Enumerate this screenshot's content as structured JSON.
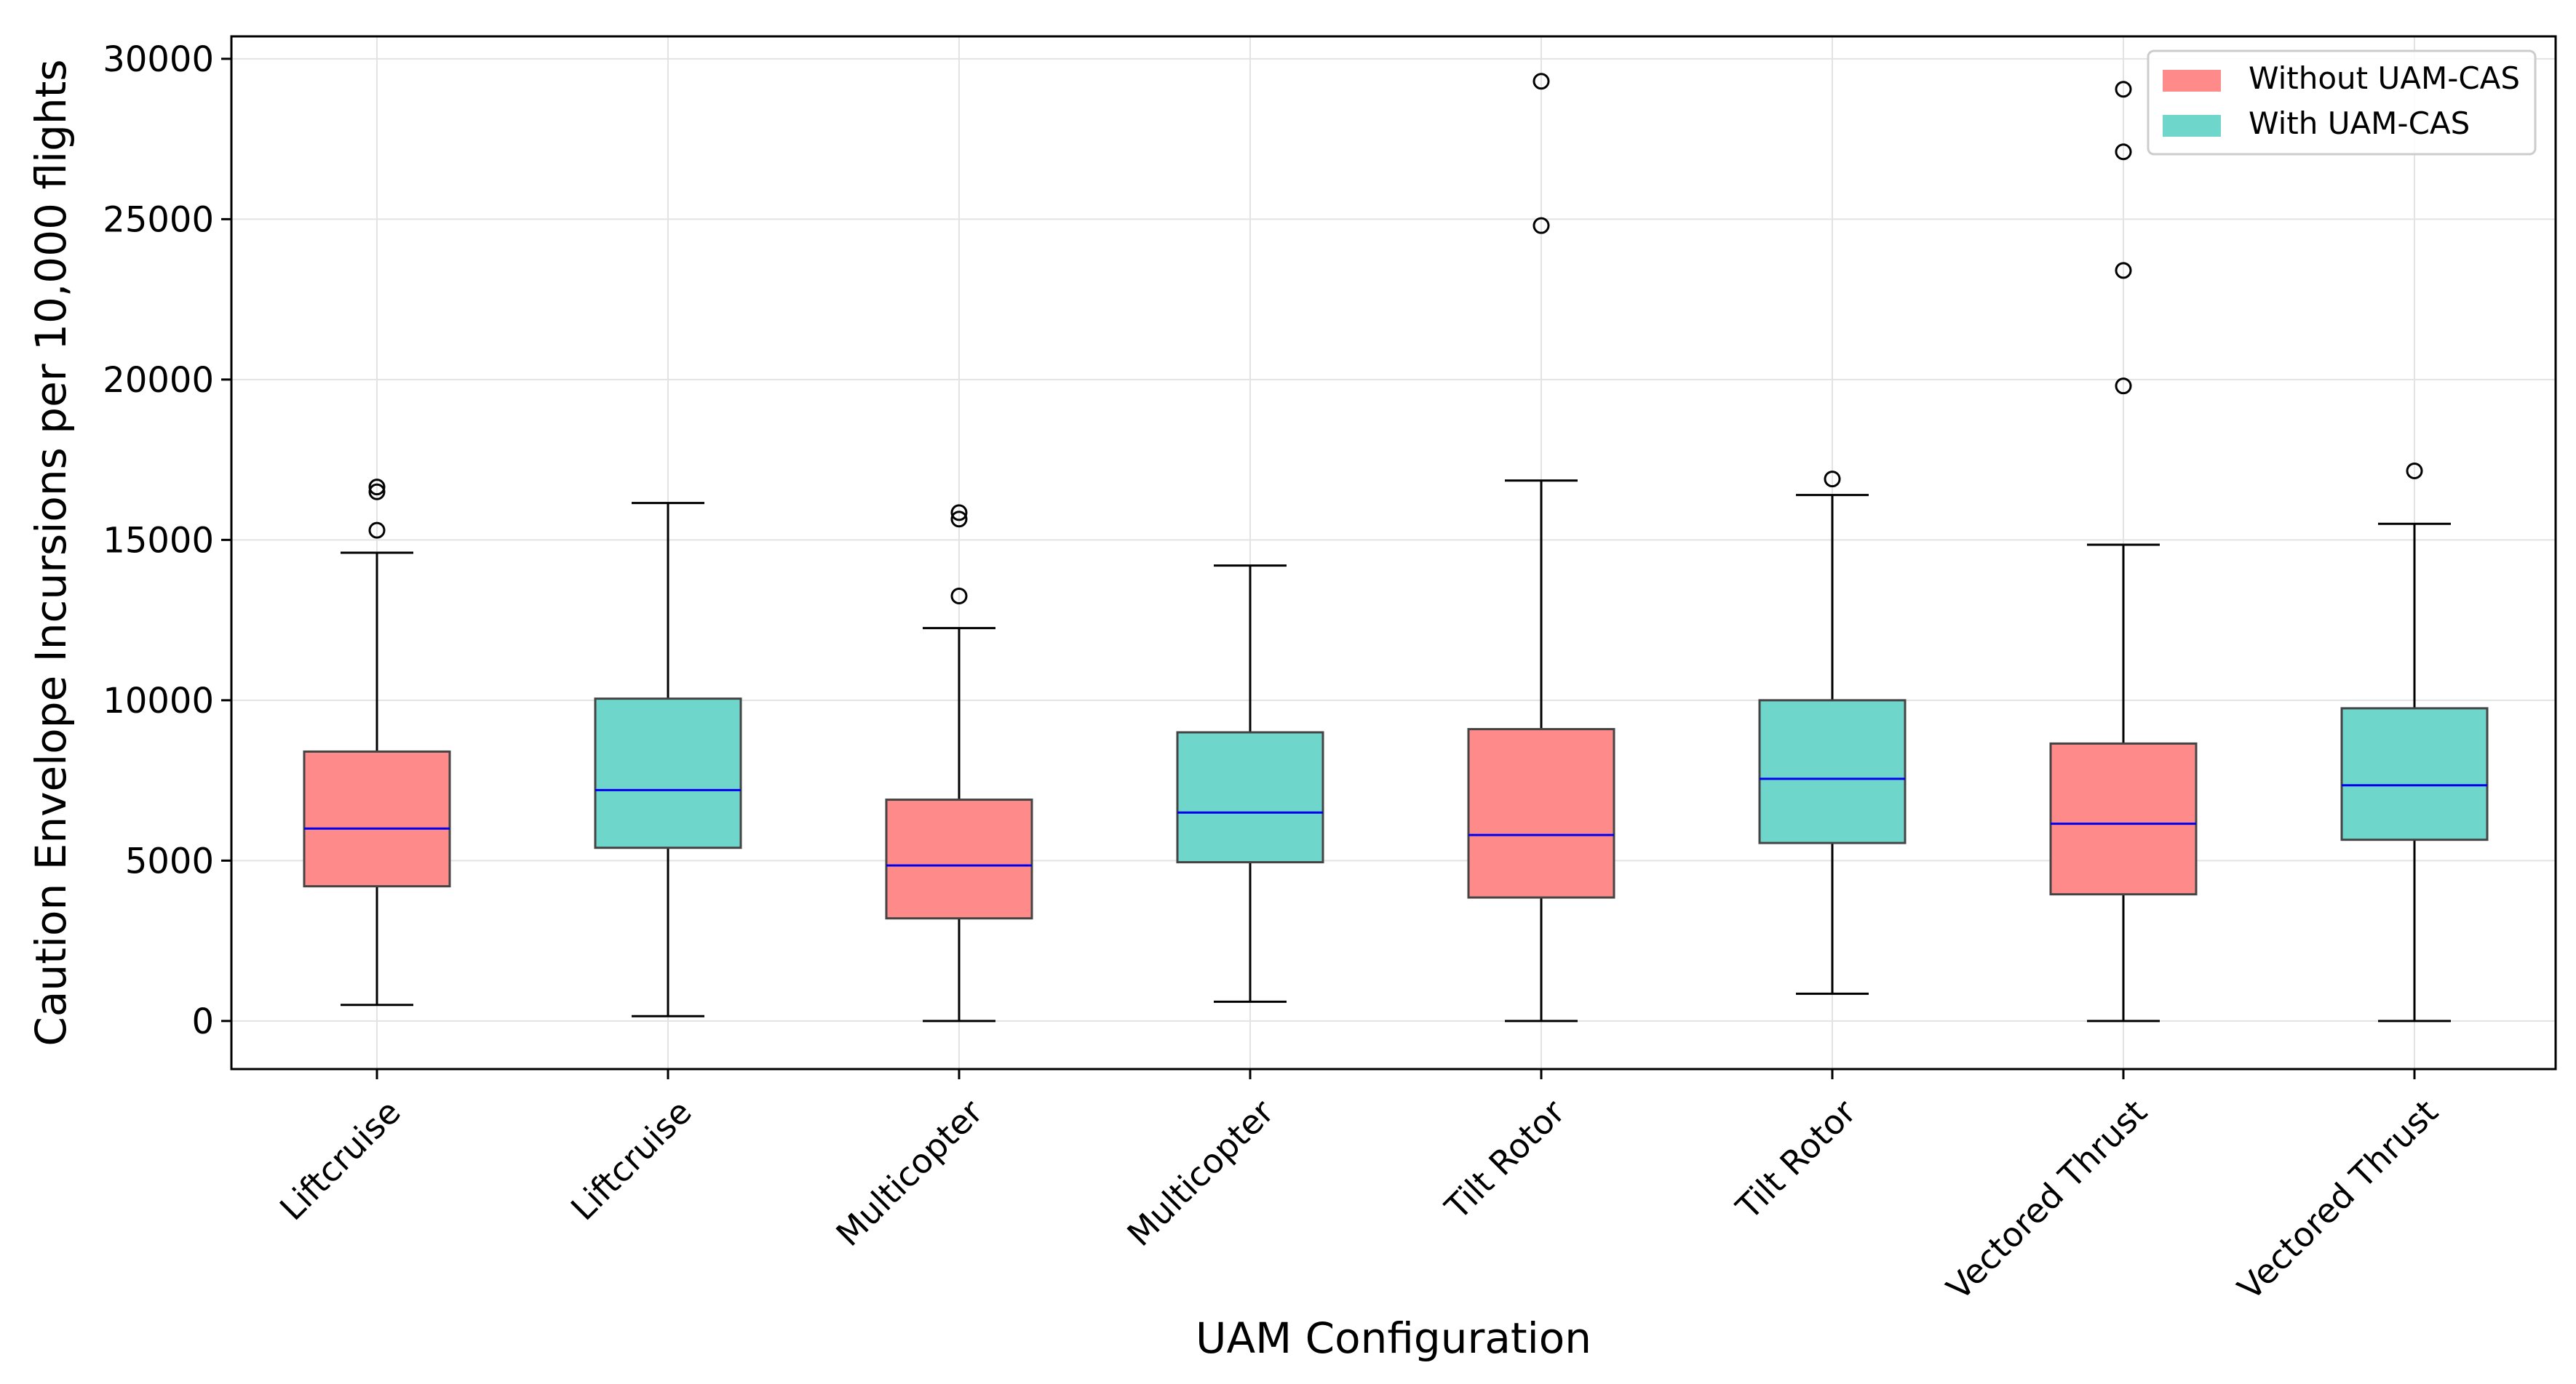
{
  "chart_data": {
    "type": "box",
    "xlabel": "UAM Configuration",
    "ylabel": "Caution Envelope Incursions per 10,000 flights",
    "ylim": [
      -1500,
      30700
    ],
    "yticks": [
      0,
      5000,
      10000,
      15000,
      20000,
      25000,
      30000
    ],
    "grid": true,
    "legend_position": "top-right",
    "legend": [
      {
        "label": "Without UAM-CAS",
        "color": "#ff8a8a"
      },
      {
        "label": "With UAM-CAS",
        "color": "#6fd6cc"
      }
    ],
    "median_color": "#0000ee",
    "categories": [
      "Liftcruise",
      "Liftcruise",
      "Multicopter",
      "Multicopter",
      "Tilt Rotor",
      "Tilt Rotor",
      "Vectored Thrust",
      "Vectored Thrust"
    ],
    "boxes": [
      {
        "category": "Liftcruise",
        "group": "Without UAM-CAS",
        "whisker_low": 500,
        "q1": 4200,
        "median": 6000,
        "q3": 8400,
        "whisker_high": 14600,
        "outliers": [
          15300,
          16500,
          16650
        ]
      },
      {
        "category": "Liftcruise",
        "group": "With UAM-CAS",
        "whisker_low": 150,
        "q1": 5400,
        "median": 7200,
        "q3": 10050,
        "whisker_high": 16150,
        "outliers": []
      },
      {
        "category": "Multicopter",
        "group": "Without UAM-CAS",
        "whisker_low": 0,
        "q1": 3200,
        "median": 4850,
        "q3": 6900,
        "whisker_high": 12250,
        "outliers": [
          13250,
          15650,
          15850
        ]
      },
      {
        "category": "Multicopter",
        "group": "With UAM-CAS",
        "whisker_low": 600,
        "q1": 4950,
        "median": 6500,
        "q3": 9000,
        "whisker_high": 14200,
        "outliers": []
      },
      {
        "category": "Tilt Rotor",
        "group": "Without UAM-CAS",
        "whisker_low": 0,
        "q1": 3850,
        "median": 5800,
        "q3": 9100,
        "whisker_high": 16850,
        "outliers": [
          24800,
          29300
        ]
      },
      {
        "category": "Tilt Rotor",
        "group": "With UAM-CAS",
        "whisker_low": 850,
        "q1": 5550,
        "median": 7550,
        "q3": 10000,
        "whisker_high": 16400,
        "outliers": [
          16900
        ]
      },
      {
        "category": "Vectored Thrust",
        "group": "Without UAM-CAS",
        "whisker_low": 0,
        "q1": 3950,
        "median": 6150,
        "q3": 8650,
        "whisker_high": 14850,
        "outliers": [
          19800,
          23400,
          27100,
          29050
        ]
      },
      {
        "category": "Vectored Thrust",
        "group": "With UAM-CAS",
        "whisker_low": 0,
        "q1": 5650,
        "median": 7350,
        "q3": 9750,
        "whisker_high": 15500,
        "outliers": [
          17150
        ]
      }
    ]
  }
}
